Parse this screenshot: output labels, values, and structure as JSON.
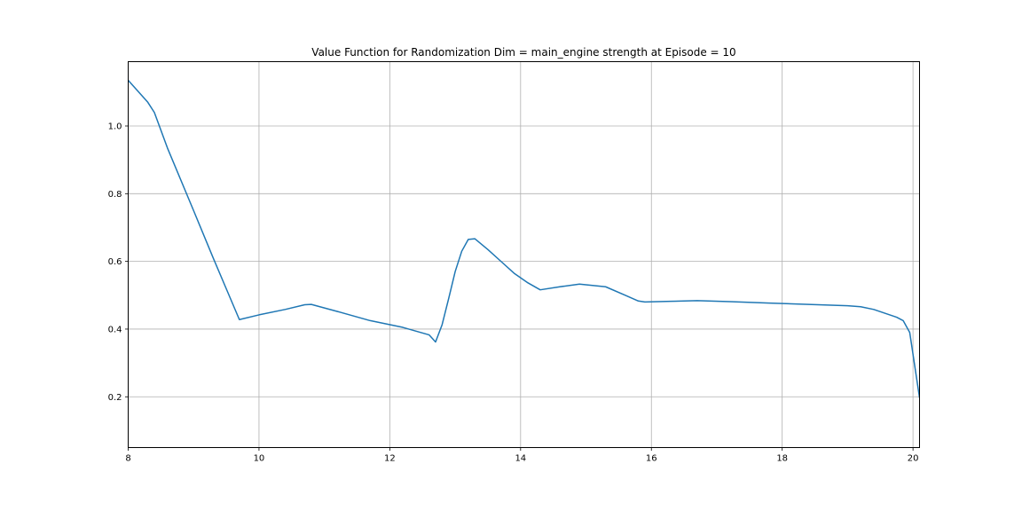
{
  "chart_data": {
    "type": "line",
    "title": "Value Function for Randomization Dim = main_engine strength at Episode = 10",
    "xlabel": "",
    "ylabel": "",
    "xlim": [
      8,
      20.1
    ],
    "ylim": [
      0.05,
      1.19
    ],
    "grid": true,
    "x_ticks": [
      8,
      10,
      12,
      14,
      16,
      18,
      20
    ],
    "y_ticks": [
      0.2,
      0.4,
      0.6,
      0.8,
      1.0
    ],
    "x_tick_labels": [
      "8",
      "10",
      "12",
      "14",
      "16",
      "18",
      "20"
    ],
    "y_tick_labels": [
      "0.2",
      "0.4",
      "0.6",
      "0.8",
      "1.0"
    ],
    "series": [
      {
        "color": "#1f77b4",
        "x": [
          8.0,
          8.3,
          8.4,
          8.6,
          9.0,
          9.3,
          9.7,
          10.0,
          10.4,
          10.7,
          10.8,
          11.2,
          11.7,
          12.2,
          12.6,
          12.7,
          12.8,
          12.9,
          13.0,
          13.1,
          13.2,
          13.3,
          13.5,
          13.7,
          13.9,
          14.1,
          14.3,
          14.6,
          14.9,
          15.3,
          15.6,
          15.8,
          15.9,
          16.3,
          16.7,
          17.2,
          17.8,
          18.4,
          19.0,
          19.2,
          19.4,
          19.6,
          19.75,
          19.85,
          19.95,
          20.1
        ],
        "values": [
          1.135,
          1.07,
          1.04,
          0.935,
          0.75,
          0.61,
          0.428,
          0.442,
          0.458,
          0.472,
          0.473,
          0.452,
          0.425,
          0.405,
          0.383,
          0.362,
          0.413,
          0.49,
          0.57,
          0.63,
          0.665,
          0.667,
          0.635,
          0.6,
          0.565,
          0.538,
          0.516,
          0.525,
          0.533,
          0.525,
          0.5,
          0.483,
          0.48,
          0.482,
          0.484,
          0.481,
          0.477,
          0.473,
          0.469,
          0.466,
          0.458,
          0.445,
          0.435,
          0.425,
          0.39,
          0.197
        ]
      }
    ]
  }
}
